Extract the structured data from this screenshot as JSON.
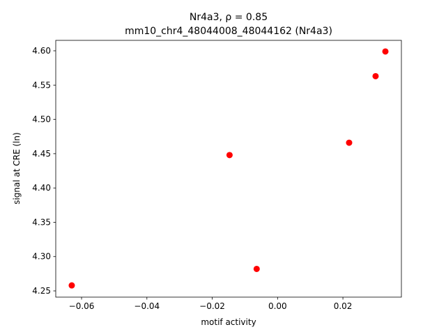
{
  "chart_data": {
    "type": "scatter",
    "title": "Nr4a3, ρ = 0.85",
    "subtitle": "mm10_chr4_48044008_48044162 (Nr4a3)",
    "x_label": "motif activity",
    "y_label": "signal at CRE (ln)",
    "color": "#ff0000",
    "series": [
      {
        "x": [
          -0.063,
          -0.0147,
          -0.0064,
          0.0219,
          0.03,
          0.033
        ],
        "values": [
          4.258,
          4.448,
          4.282,
          4.466,
          4.563,
          4.599
        ]
      }
    ],
    "xlim": [
      -0.0679,
      0.0379
    ],
    "ylim": [
      4.2409,
      4.6152
    ],
    "xticks": [
      {
        "value": -0.06,
        "label": "−0.06"
      },
      {
        "value": -0.04,
        "label": "−0.04"
      },
      {
        "value": -0.02,
        "label": "−0.02"
      },
      {
        "value": 0,
        "label": "0.00"
      },
      0.02
    ],
    "yticks": [
      4.25,
      {
        "value": 4.3,
        "label": "4.30"
      },
      4.35,
      {
        "value": 4.4,
        "label": "4.40"
      },
      4.45,
      {
        "value": 4.5,
        "label": "4.50"
      },
      4.55,
      {
        "value": 4.6,
        "label": "4.60"
      }
    ]
  }
}
